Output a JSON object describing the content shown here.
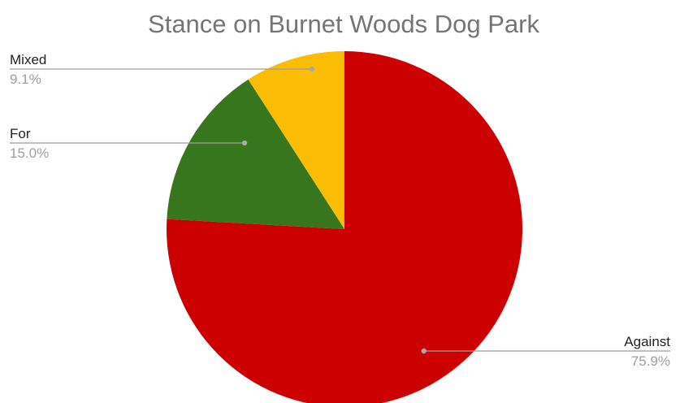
{
  "chart_data": {
    "type": "pie",
    "title": "Stance on Burnet Woods Dog Park",
    "slices": [
      {
        "label": "Mixed",
        "value": 9.1,
        "display": "9.1%",
        "color": "#fbbc04"
      },
      {
        "label": "For",
        "value": 15.0,
        "display": "15.0%",
        "color": "#38761d"
      },
      {
        "label": "Against",
        "value": 75.9,
        "display": "75.9%",
        "color": "#cc0000"
      }
    ],
    "start": "12 o'clock",
    "direction": "counter-clockwise",
    "legend": "labels with leader lines"
  }
}
